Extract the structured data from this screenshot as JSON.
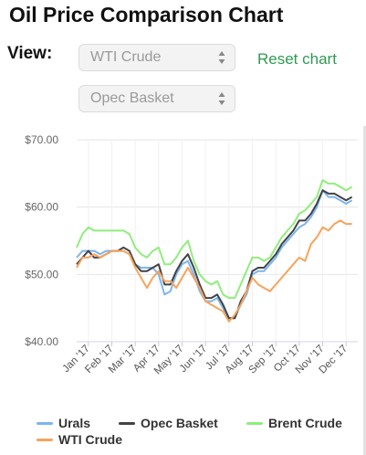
{
  "page": {
    "title": "Oil Price Comparison Chart",
    "view_label": "View:",
    "select_1_value": "WTI Crude",
    "select_2_value": "Opec Basket",
    "reset_label": "Reset chart"
  },
  "chart_data": {
    "type": "line",
    "title": "",
    "xlabel": "",
    "ylabel": "",
    "ylim": [
      40,
      70
    ],
    "y_ticks": [
      "$40.00",
      "$50.00",
      "$60.00",
      "$70.00"
    ],
    "x_tick_labels": [
      "Jan '17",
      "Feb '17",
      "Mar '17",
      "Apr '17",
      "May '17",
      "Jun '17",
      "Jul '17",
      "Aug '17",
      "Sep '17",
      "Oct '17",
      "Nov '17",
      "Dec '17"
    ],
    "grid": true,
    "legend_position": "bottom",
    "colors": {
      "urals": "#7cb5ec",
      "opec": "#434348",
      "brent": "#90ed7d",
      "wti": "#f7a35c"
    },
    "x": [
      0,
      0.25,
      0.5,
      0.75,
      1,
      1.25,
      1.5,
      1.75,
      2,
      2.25,
      2.5,
      2.75,
      3,
      3.25,
      3.5,
      3.75,
      4,
      4.25,
      4.5,
      4.75,
      5,
      5.25,
      5.5,
      5.75,
      6,
      6.25,
      6.5,
      6.75,
      7,
      7.25,
      7.5,
      7.75,
      8,
      8.25,
      8.5,
      8.75,
      9,
      9.25,
      9.5,
      9.75,
      10,
      10.25,
      10.5,
      10.75,
      11,
      11.25,
      11.5,
      11.75
    ],
    "series": [
      {
        "name": "Urals",
        "color": "#7cb5ec",
        "values": [
          52.5,
          53.5,
          53.5,
          53.5,
          53,
          53.5,
          53.5,
          53.5,
          53.5,
          53,
          51.5,
          51,
          51,
          51,
          50,
          47,
          47.5,
          50,
          51.5,
          52,
          50,
          47.5,
          46,
          46,
          46.5,
          45,
          43.5,
          43.5,
          45.5,
          47,
          50,
          50.5,
          50.5,
          51.5,
          52.5,
          54,
          55,
          56,
          57,
          57.5,
          58.5,
          60,
          62.5,
          61.5,
          61.5,
          61,
          60.5,
          61
        ]
      },
      {
        "name": "Opec Basket",
        "color": "#434348",
        "values": [
          51.5,
          52.5,
          53.5,
          52.5,
          52.5,
          53,
          53.5,
          53.5,
          54,
          53.5,
          51.5,
          50.5,
          50.5,
          51,
          51.5,
          48.5,
          48.5,
          50.5,
          52,
          53,
          51,
          48.5,
          46.5,
          46.5,
          47,
          45.5,
          43.5,
          43.5,
          46,
          47.5,
          50.5,
          51,
          51,
          52,
          53,
          54.5,
          55.5,
          56.5,
          58,
          58,
          59,
          60.5,
          62.5,
          62,
          62,
          61.5,
          61,
          61.5
        ]
      },
      {
        "name": "Brent Crude",
        "color": "#90ed7d",
        "values": [
          54,
          56,
          57,
          56.5,
          56.5,
          56.5,
          56.5,
          56.5,
          56.5,
          56,
          54,
          53,
          52.5,
          53.5,
          54,
          51.5,
          51.5,
          52.5,
          54,
          55,
          52,
          50,
          49,
          48.5,
          49,
          47,
          46.5,
          46.5,
          48.5,
          50.5,
          52.5,
          52.5,
          52,
          52.5,
          54,
          55.5,
          56.5,
          57.5,
          59,
          59.5,
          60.5,
          61.5,
          64,
          63.5,
          63.5,
          63,
          62.5,
          63
        ]
      },
      {
        "name": "WTI Crude",
        "color": "#f7a35c",
        "values": [
          51,
          52.5,
          52.5,
          53,
          52.5,
          53,
          53.5,
          53.5,
          53.5,
          53,
          51,
          49.5,
          48,
          49.5,
          50.5,
          49,
          49,
          48,
          49.5,
          51,
          49.5,
          48,
          46,
          45.5,
          45,
          44.5,
          43,
          44,
          45.5,
          47.5,
          49.5,
          48.5,
          48,
          47.5,
          48.5,
          49.5,
          50.5,
          51.5,
          52.5,
          52,
          54.5,
          55.5,
          57,
          56.5,
          57.5,
          58,
          57.5,
          57.5
        ]
      }
    ]
  },
  "legend": {
    "items": [
      {
        "label": "Urals",
        "color": "#7cb5ec"
      },
      {
        "label": "Opec Basket",
        "color": "#434348"
      },
      {
        "label": "Brent Crude",
        "color": "#90ed7d"
      },
      {
        "label": "WTI Crude",
        "color": "#f7a35c"
      }
    ]
  }
}
